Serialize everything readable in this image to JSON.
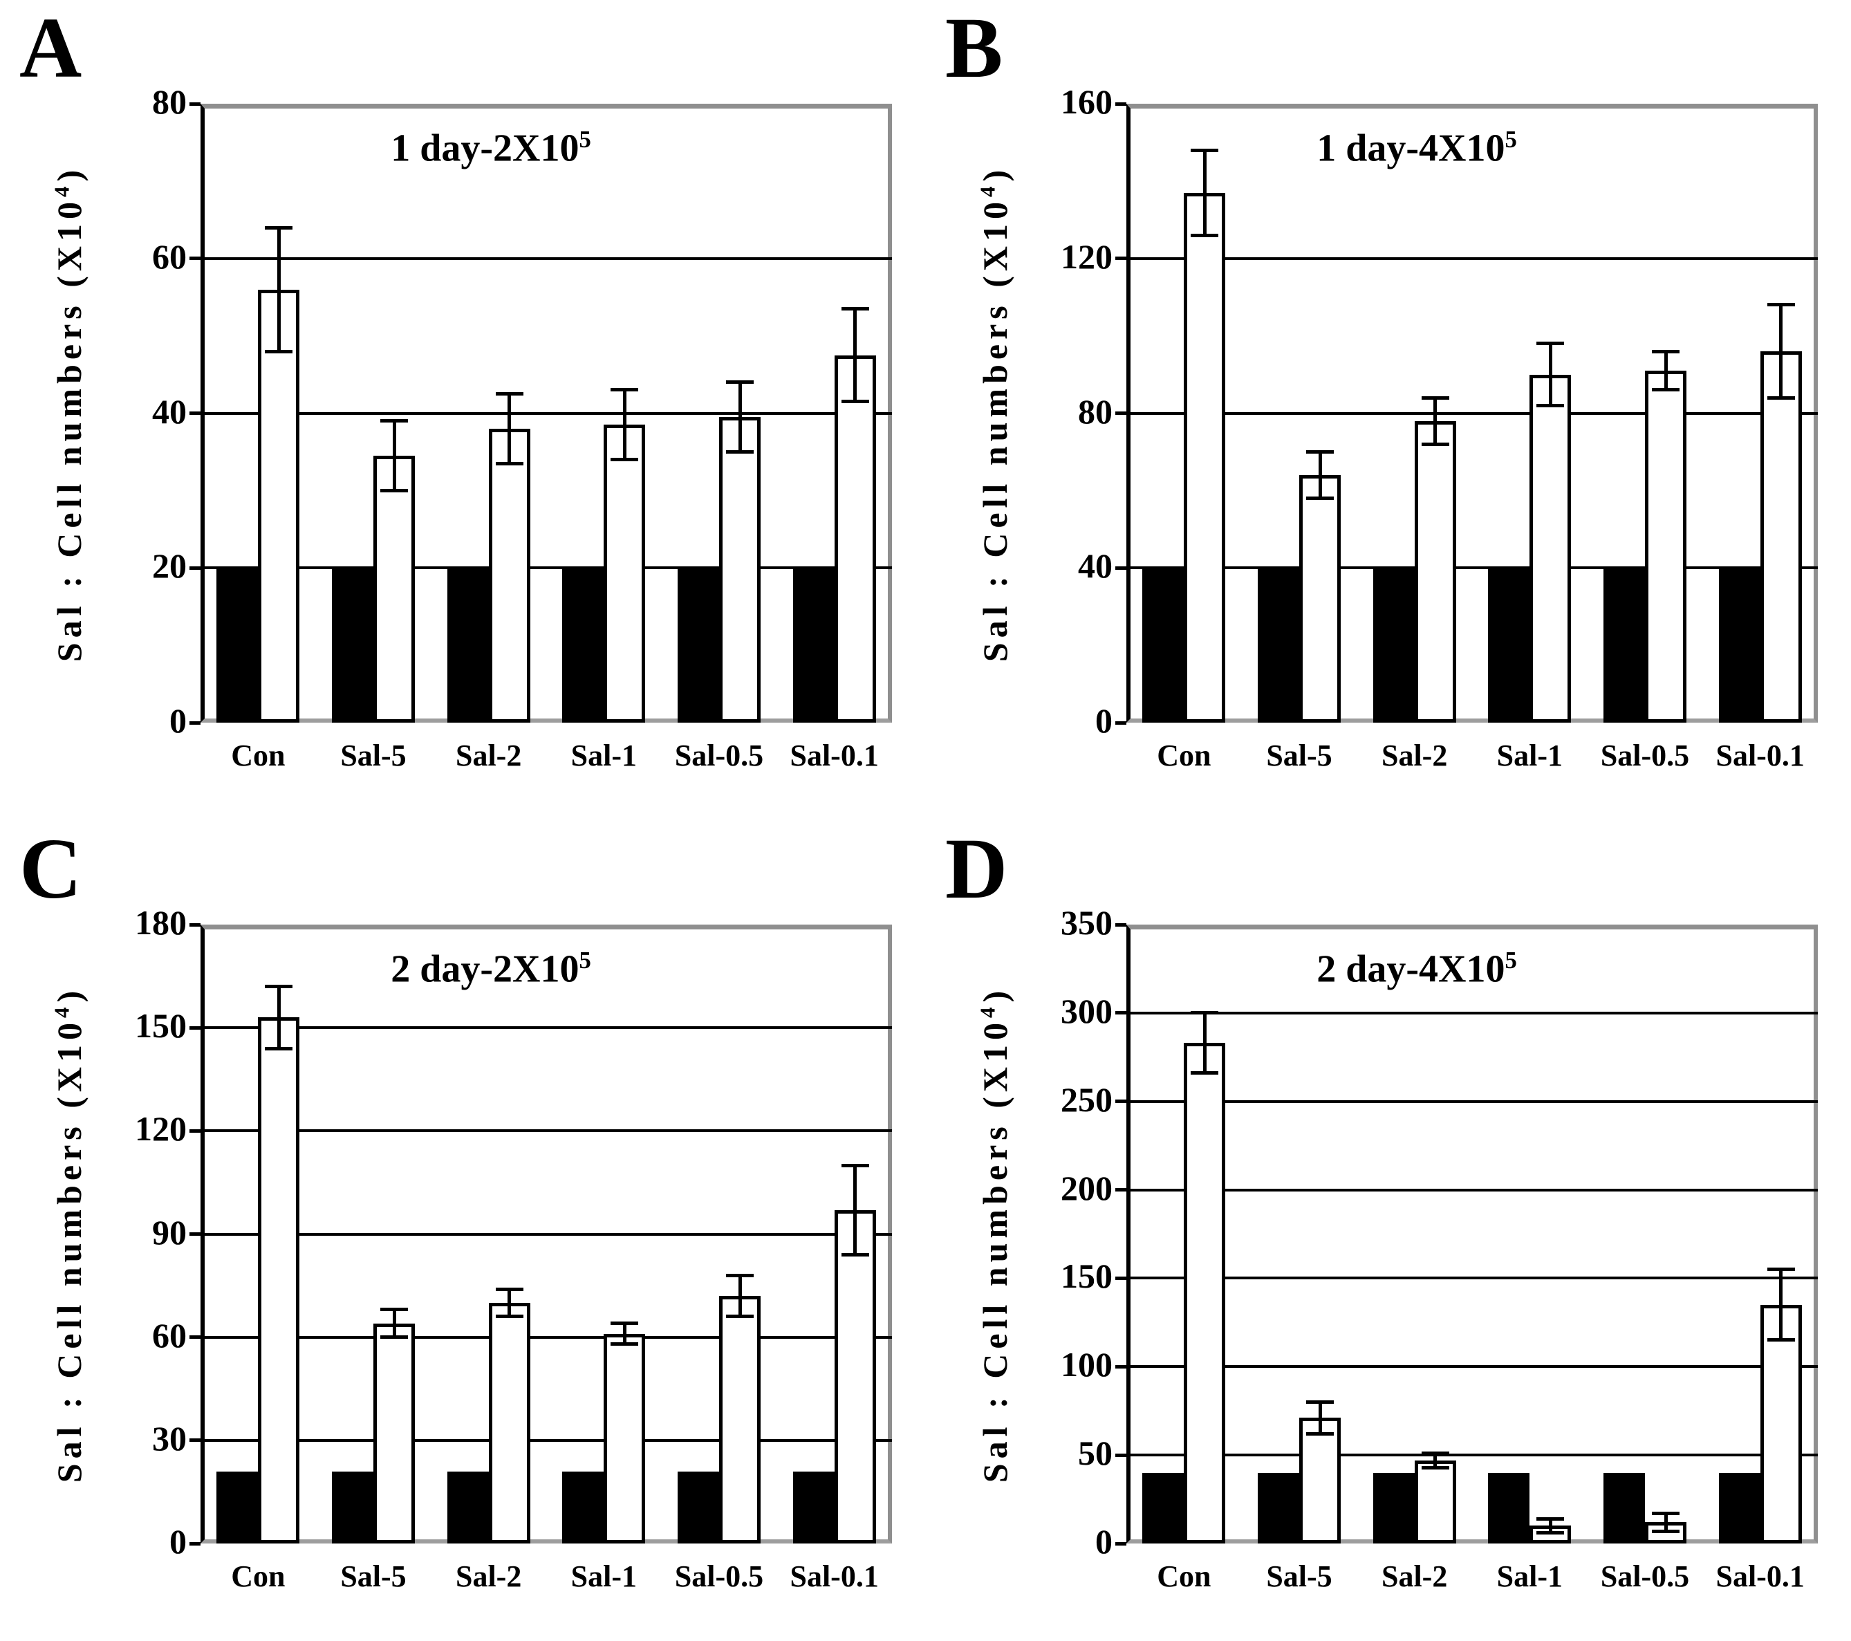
{
  "figure": {
    "background": "#ffffff",
    "colors": {
      "bar_black": "#000000",
      "bar_white": "#ffffff",
      "outline": "#000000",
      "frame_gray": "#8f8f8f",
      "gridline": "#000000"
    }
  },
  "chart_data": [
    {
      "type": "bar",
      "panel_label": "A",
      "title": "1 day-2X10^5",
      "title_base": "1 day-2X10",
      "title_exp": "5",
      "ylabel": "Sal : Cell numbers (X10^4)",
      "ylabel_base": "Sal : Cell numbers (X10",
      "ylabel_exp": "4",
      "ylabel_close": ")",
      "xlabel": "",
      "ylim": [
        0,
        80
      ],
      "yticks": [
        0,
        20,
        40,
        60,
        80
      ],
      "grid": true,
      "legend": "none",
      "categories": [
        "Con",
        "Sal-5",
        "Sal-2",
        "Sal-1",
        "Sal-0.5",
        "Sal-0.1"
      ],
      "series": [
        {
          "name": "black-bars",
          "fill": "#000000",
          "values": [
            20,
            20,
            20,
            20,
            20,
            20
          ]
        },
        {
          "name": "white-bars-with-error",
          "fill": "#ffffff",
          "values": [
            56,
            34.5,
            38,
            38.5,
            39.5,
            47.5
          ],
          "errors": [
            8,
            4.5,
            4.5,
            4.5,
            4.5,
            6
          ]
        }
      ]
    },
    {
      "type": "bar",
      "panel_label": "B",
      "title": "1 day-4X10^5",
      "title_base": "1 day-4X10",
      "title_exp": "5",
      "ylabel": "Sal : Cell numbers (X10^4)",
      "ylabel_base": "Sal : Cell numbers (X10",
      "ylabel_exp": "4",
      "ylabel_close": ")",
      "xlabel": "",
      "ylim": [
        0,
        160
      ],
      "yticks": [
        0,
        40,
        80,
        120,
        160
      ],
      "grid": true,
      "legend": "none",
      "categories": [
        "Con",
        "Sal-5",
        "Sal-2",
        "Sal-1",
        "Sal-0.5",
        "Sal-0.1"
      ],
      "series": [
        {
          "name": "black-bars",
          "fill": "#000000",
          "values": [
            40,
            40,
            40,
            40,
            40,
            40
          ]
        },
        {
          "name": "white-bars-with-error",
          "fill": "#ffffff",
          "values": [
            137,
            64,
            78,
            90,
            91,
            96
          ],
          "errors": [
            11,
            6,
            6,
            8,
            5,
            12
          ]
        }
      ]
    },
    {
      "type": "bar",
      "panel_label": "C",
      "title": "2 day-2X10^5",
      "title_base": "2 day-2X10",
      "title_exp": "5",
      "ylabel": "Sal : Cell numbers (X10^4)",
      "ylabel_base": "Sal : Cell numbers (X10",
      "ylabel_exp": "4",
      "ylabel_close": ")",
      "xlabel": "",
      "ylim": [
        0,
        180
      ],
      "yticks": [
        0,
        30,
        60,
        90,
        120,
        150,
        180
      ],
      "grid": true,
      "legend": "none",
      "categories": [
        "Con",
        "Sal-5",
        "Sal-2",
        "Sal-1",
        "Sal-0.5",
        "Sal-0.1"
      ],
      "series": [
        {
          "name": "black-bars",
          "fill": "#000000",
          "values": [
            21,
            21,
            21,
            21,
            21,
            21
          ]
        },
        {
          "name": "white-bars-with-error",
          "fill": "#ffffff",
          "values": [
            153,
            64,
            70,
            61,
            72,
            97
          ],
          "errors": [
            9,
            4,
            4,
            3,
            6,
            13
          ]
        }
      ]
    },
    {
      "type": "bar",
      "panel_label": "D",
      "title": "2 day-4X10^5",
      "title_base": "2 day-4X10",
      "title_exp": "5",
      "ylabel": "Sal : Cell numbers (X10^4)",
      "ylabel_base": "Sal : Cell numbers (X10",
      "ylabel_exp": "4",
      "ylabel_close": ")",
      "xlabel": "",
      "ylim": [
        0,
        350
      ],
      "yticks": [
        0,
        50,
        100,
        150,
        200,
        250,
        300,
        350
      ],
      "grid": true,
      "legend": "none",
      "categories": [
        "Con",
        "Sal-5",
        "Sal-2",
        "Sal-1",
        "Sal-0.5",
        "Sal-0.1"
      ],
      "series": [
        {
          "name": "black-bars",
          "fill": "#000000",
          "values": [
            40,
            40,
            40,
            40,
            40,
            40
          ]
        },
        {
          "name": "white-bars-with-error",
          "fill": "#ffffff",
          "values": [
            283,
            71,
            47,
            10,
            12,
            135
          ],
          "errors": [
            17,
            9,
            4,
            4,
            5,
            20
          ]
        }
      ]
    }
  ]
}
